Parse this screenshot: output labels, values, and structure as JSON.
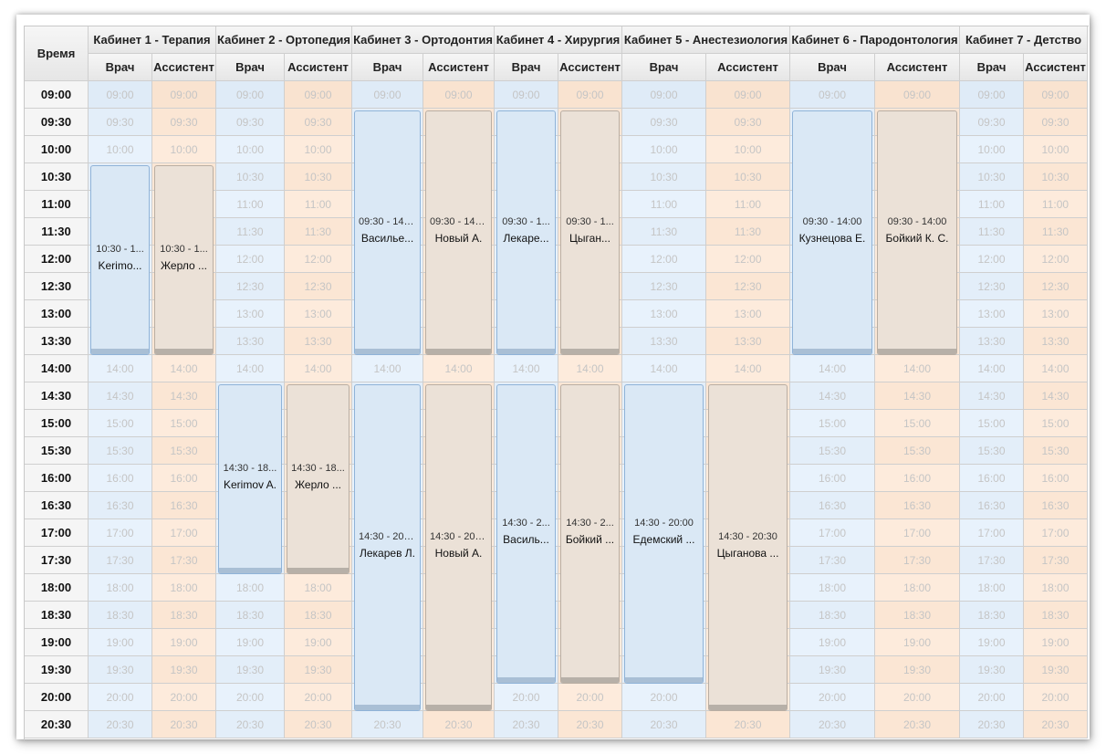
{
  "header": {
    "time_label": "Время",
    "rooms": [
      {
        "label": "Кабинет 1 - Терапия",
        "doctor_label": "Врач",
        "assistant_label": "Ассистент"
      },
      {
        "label": "Кабинет 2 - Ортопедия",
        "doctor_label": "Врач",
        "assistant_label": "Ассистент"
      },
      {
        "label": "Кабинет 3 - Ортодонтия",
        "doctor_label": "Врач",
        "assistant_label": "Ассистент"
      },
      {
        "label": "Кабинет 4 - Хирургия",
        "doctor_label": "Врач",
        "assistant_label": "Ассистент"
      },
      {
        "label": "Кабинет 5 - Анестезиология",
        "doctor_label": "Врач",
        "assistant_label": "Ассистент"
      },
      {
        "label": "Кабинет 6 - Пародонтология",
        "doctor_label": "Врач",
        "assistant_label": "Ассистент"
      },
      {
        "label": "Кабинет 7 - Детство",
        "doctor_label": "Врач",
        "assistant_label": "Ассистент"
      }
    ]
  },
  "times": [
    "09:00",
    "09:30",
    "10:00",
    "10:30",
    "11:00",
    "11:30",
    "12:00",
    "12:30",
    "13:00",
    "13:30",
    "14:00",
    "14:30",
    "15:00",
    "15:30",
    "16:00",
    "16:30",
    "17:00",
    "17:30",
    "18:00",
    "18:30",
    "19:00",
    "19:30",
    "20:00",
    "20:30"
  ],
  "events": [
    {
      "room": 1,
      "role": "doctor",
      "start": "10:30",
      "end": "14:00",
      "time_text": "10:30 - 1...",
      "name": "Kerimo..."
    },
    {
      "room": 1,
      "role": "assistant",
      "start": "10:30",
      "end": "14:00",
      "time_text": "10:30 - 1...",
      "name": "Жерло ..."
    },
    {
      "room": 2,
      "role": "doctor",
      "start": "14:30",
      "end": "18:00",
      "time_text": "14:30 - 18...",
      "name": "Kerimov A."
    },
    {
      "room": 2,
      "role": "assistant",
      "start": "14:30",
      "end": "18:00",
      "time_text": "14:30 - 18...",
      "name": "Жерло ..."
    },
    {
      "room": 3,
      "role": "doctor",
      "start": "09:30",
      "end": "14:00",
      "time_text": "09:30 - 14:00",
      "name": "Василье..."
    },
    {
      "room": 3,
      "role": "assistant",
      "start": "09:30",
      "end": "14:00",
      "time_text": "09:30 - 14:00",
      "name": "Новый А."
    },
    {
      "room": 3,
      "role": "doctor",
      "start": "14:30",
      "end": "20:30",
      "time_text": "14:30 - 20:30",
      "name": "Лекарев Л."
    },
    {
      "room": 3,
      "role": "assistant",
      "start": "14:30",
      "end": "20:30",
      "time_text": "14:30 - 20:30",
      "name": "Новый А."
    },
    {
      "room": 4,
      "role": "doctor",
      "start": "09:30",
      "end": "14:00",
      "time_text": "09:30 - 1...",
      "name": "Лекаре..."
    },
    {
      "room": 4,
      "role": "assistant",
      "start": "09:30",
      "end": "14:00",
      "time_text": "09:30 - 1...",
      "name": "Цыган..."
    },
    {
      "room": 4,
      "role": "doctor",
      "start": "14:30",
      "end": "20:00",
      "time_text": "14:30 - 2...",
      "name": "Василь..."
    },
    {
      "room": 4,
      "role": "assistant",
      "start": "14:30",
      "end": "20:00",
      "time_text": "14:30 - 2...",
      "name": "Бойкий ..."
    },
    {
      "room": 5,
      "role": "doctor",
      "start": "14:30",
      "end": "20:00",
      "time_text": "14:30 - 20:00",
      "name": "Едемский ..."
    },
    {
      "room": 5,
      "role": "assistant",
      "start": "14:30",
      "end": "20:30",
      "time_text": "14:30 - 20:30",
      "name": "Цыганова ..."
    },
    {
      "room": 6,
      "role": "doctor",
      "start": "09:30",
      "end": "14:00",
      "time_text": "09:30 - 14:00",
      "name": "Кузнецова Е."
    },
    {
      "room": 6,
      "role": "assistant",
      "start": "09:30",
      "end": "14:00",
      "time_text": "09:30 - 14:00",
      "name": "Бойкий К. С."
    }
  ]
}
